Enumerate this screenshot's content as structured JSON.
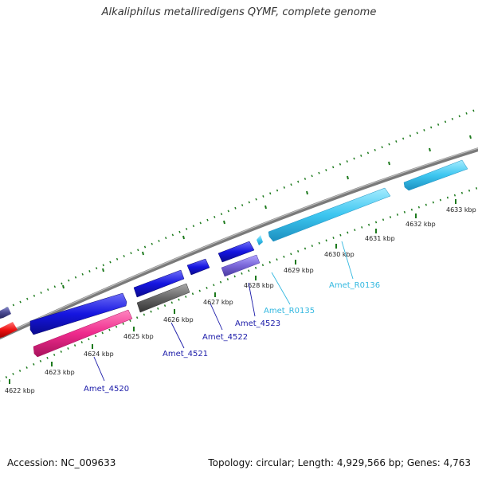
{
  "header": {
    "title": "Alkaliphilus metalliredigens QYMF, complete genome"
  },
  "footer": {
    "accession": "Accession: NC_009633",
    "summary": "Topology: circular; Length: 4,929,566 bp; Genes: 4,763"
  },
  "colors": {
    "backbone": "#8c8c8c",
    "tick": "#1d7a1d",
    "cds_blue": "#1515e0",
    "cds_pink": "#ee2a8c",
    "cds_gray": "#666666",
    "cds_purple": "#7a66d8",
    "cds_red": "#ee1111",
    "rna_cyan": "#3cc6f0",
    "label_blue": "#1a1aa8",
    "label_cyan": "#33b8e0"
  },
  "map": {
    "kbp_labels": [
      "4622 kbp",
      "4623 kbp",
      "4624 kbp",
      "4625 kbp",
      "4626 kbp",
      "4627 kbp",
      "4628 kbp",
      "4629 kbp",
      "4630 kbp",
      "4631 kbp",
      "4632 kbp",
      "4633 kbp"
    ],
    "genes": [
      {
        "id": "Amet_4520",
        "type": "CDS",
        "color_key": "label_blue"
      },
      {
        "id": "Amet_4521",
        "type": "CDS",
        "color_key": "label_blue"
      },
      {
        "id": "Amet_4522",
        "type": "CDS",
        "color_key": "label_blue"
      },
      {
        "id": "Amet_4523",
        "type": "CDS",
        "color_key": "label_blue"
      },
      {
        "id": "Amet_R0135",
        "type": "RNA",
        "color_key": "label_cyan"
      },
      {
        "id": "Amet_R0136",
        "type": "RNA",
        "color_key": "label_cyan"
      }
    ]
  }
}
